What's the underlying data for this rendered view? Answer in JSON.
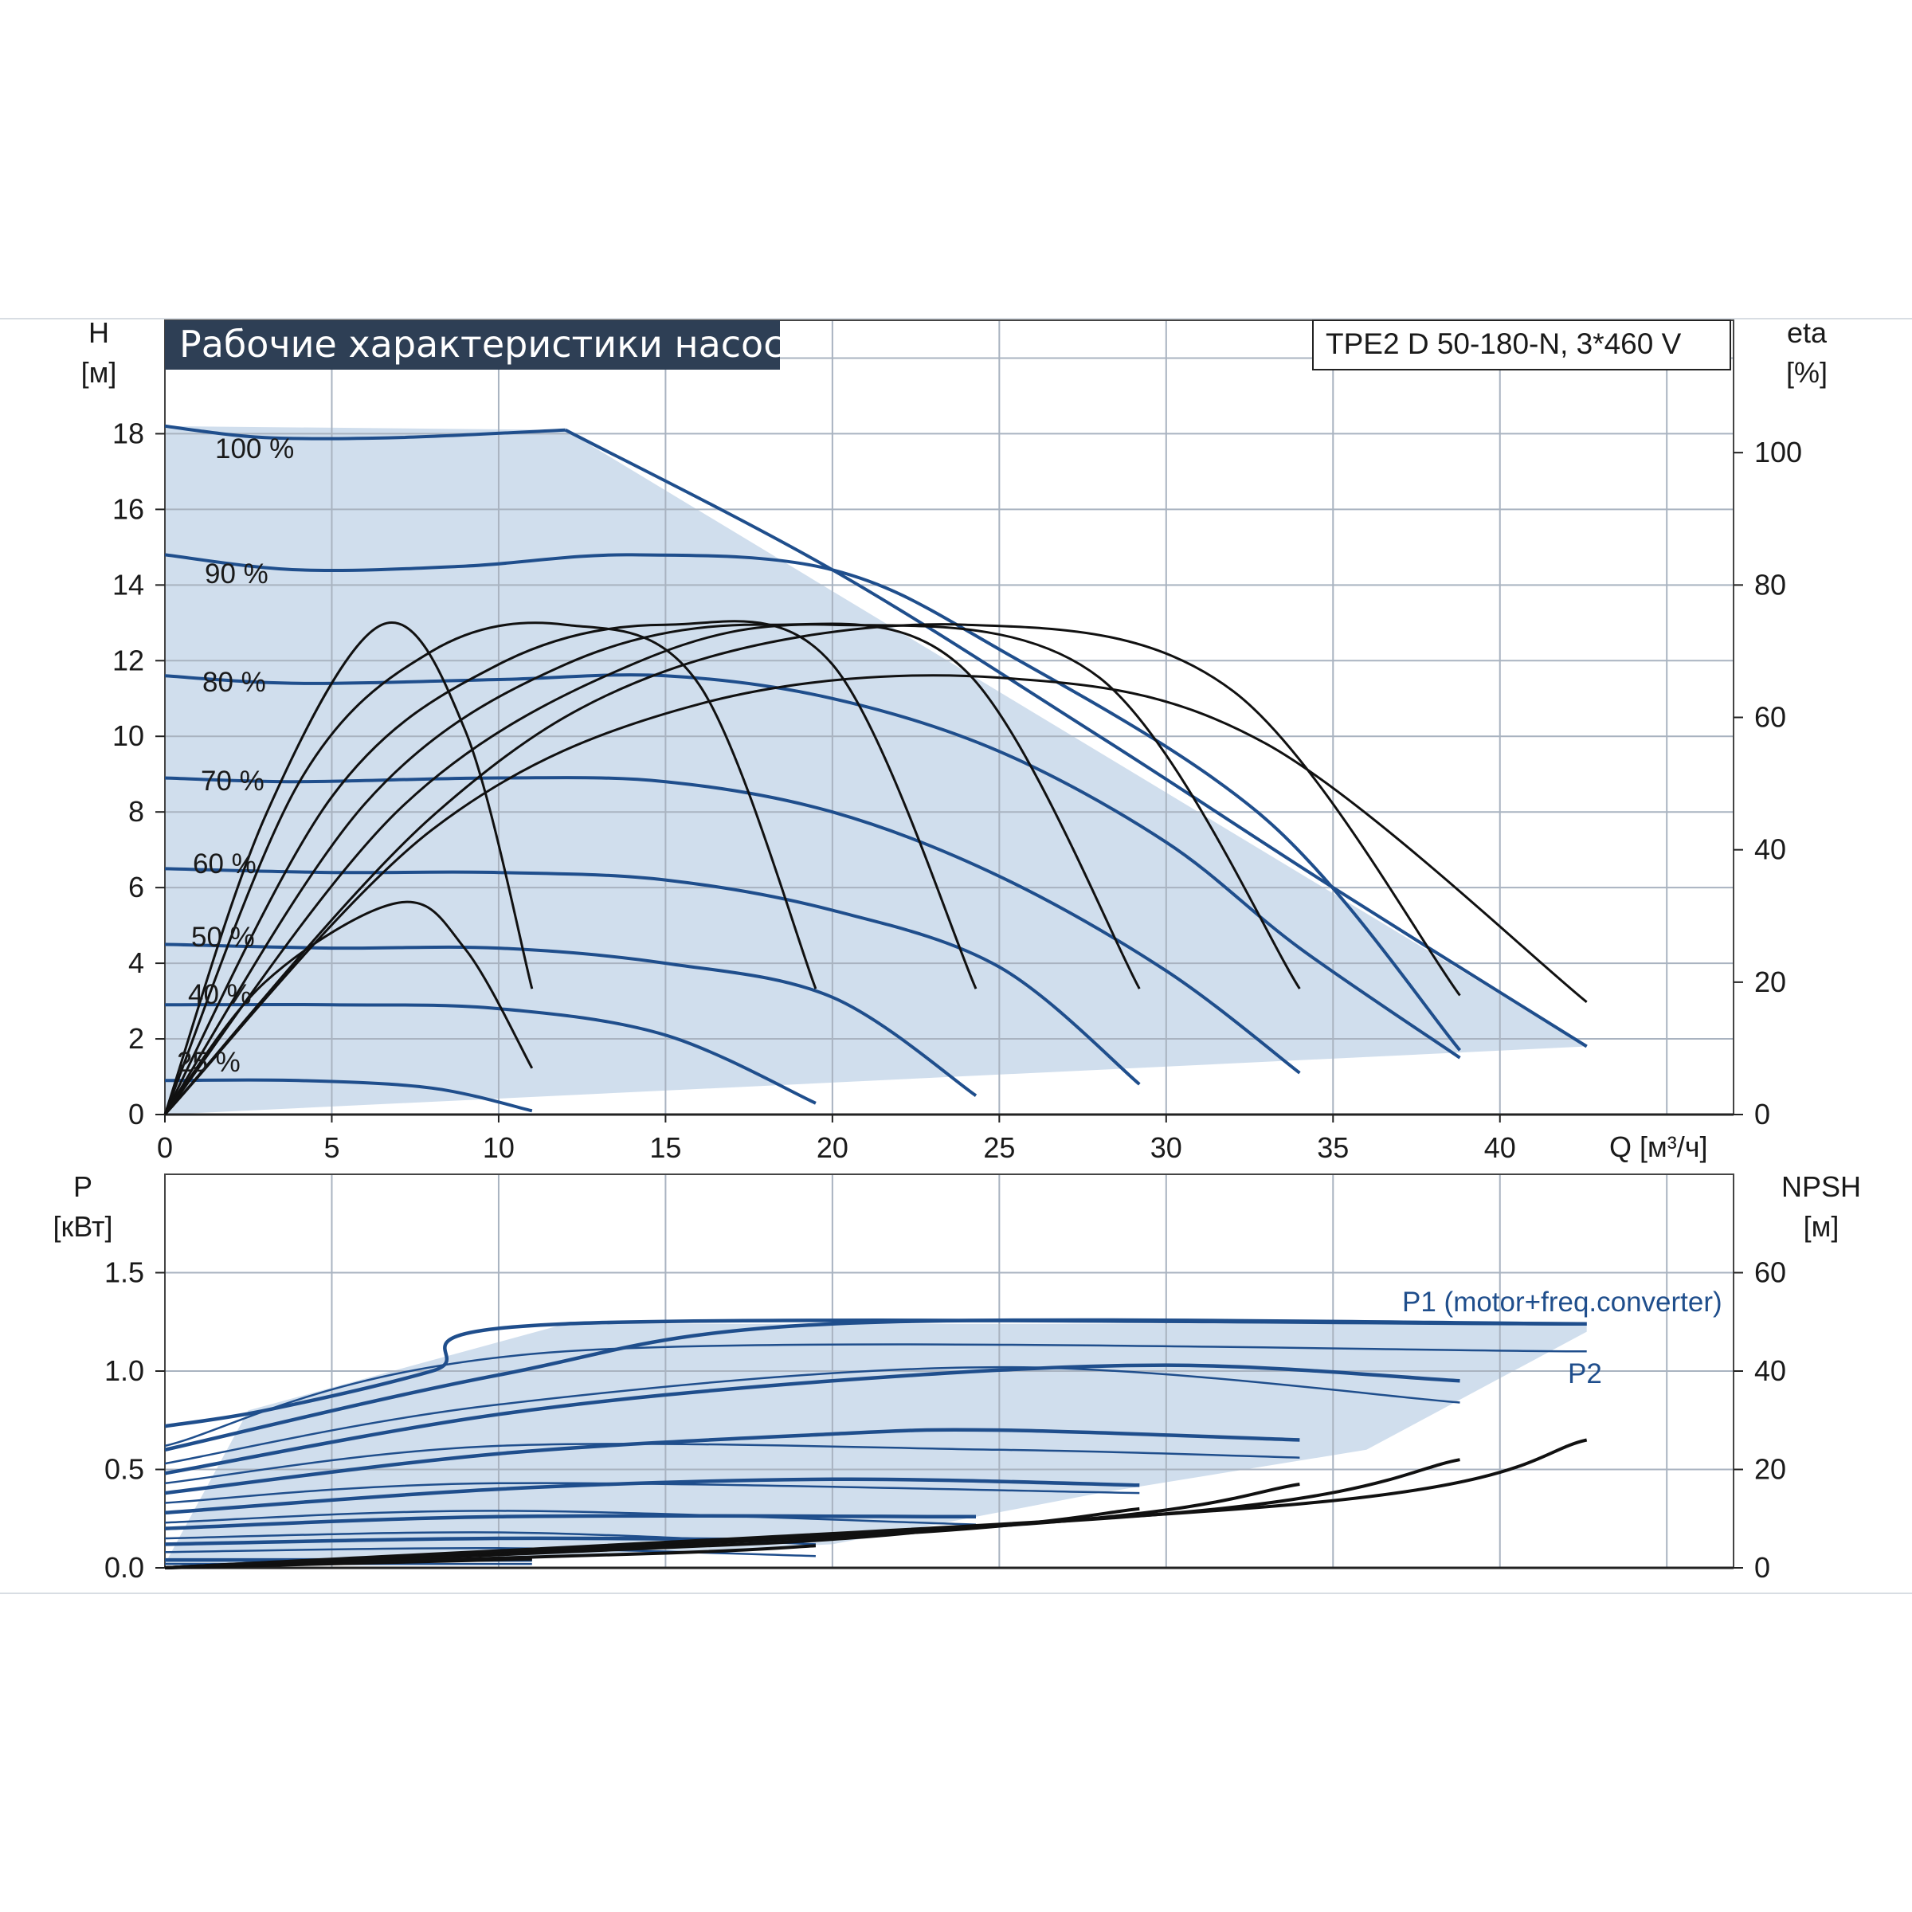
{
  "colors": {
    "curve_blue": "#1f4e8c",
    "area_fill": "#cddcec",
    "area_fill_light": "#eef5fc",
    "grid": "#a9b3c0",
    "efficiency": "#111111",
    "title_bg": "#2e3f55"
  },
  "header": {
    "title": "Рабочие характеристики насоса",
    "model": "TPE2 D 50-180-N, 3*460 V"
  },
  "chart_data": [
    {
      "type": "line",
      "title": "Рабочие характеристики насоса",
      "xlabel": "Q [м³/ч]",
      "ylabel_unit": "H",
      "ylabel_dim": "[м]",
      "y2label_unit": "eta",
      "y2label_dim": "[%]",
      "xlim": [
        0,
        47
      ],
      "ylim": [
        0,
        21
      ],
      "y2lim": [
        0,
        120
      ],
      "x_ticks": [
        "0",
        "5",
        "10",
        "15",
        "20",
        "25",
        "30",
        "35",
        "40"
      ],
      "y_ticks": [
        "0",
        "2",
        "4",
        "6",
        "8",
        "10",
        "12",
        "14",
        "16",
        "18"
      ],
      "y2_ticks": [
        "0",
        "20",
        "40",
        "60",
        "80",
        "100"
      ],
      "grid": true,
      "operating_area": [
        [
          0,
          0
        ],
        [
          42.6,
          1.8
        ],
        [
          12,
          18.1
        ],
        [
          0,
          18.2
        ]
      ],
      "speed_curves": [
        {
          "name": "100 %",
          "points": [
            [
              0,
              18.2
            ],
            [
              3,
              17.9
            ],
            [
              7,
              17.9
            ],
            [
              12,
              18.1
            ]
          ]
        },
        {
          "name": "90 %",
          "points": [
            [
              0,
              14.8
            ],
            [
              4,
              14.4
            ],
            [
              9,
              14.5
            ],
            [
              14,
              14.8
            ],
            [
              20,
              14.4
            ],
            [
              25,
              12.3
            ],
            [
              33,
              7.8
            ],
            [
              38.8,
              1.7
            ]
          ]
        },
        {
          "name": "80 %",
          "points": [
            [
              0,
              11.6
            ],
            [
              4,
              11.4
            ],
            [
              10,
              11.5
            ],
            [
              15,
              11.6
            ],
            [
              20,
              11.0
            ],
            [
              25,
              9.6
            ],
            [
              30,
              7.2
            ],
            [
              34,
              4.4
            ],
            [
              38.8,
              1.5
            ]
          ]
        },
        {
          "name": "70 %",
          "points": [
            [
              0,
              8.9
            ],
            [
              4,
              8.8
            ],
            [
              10,
              8.9
            ],
            [
              15,
              8.8
            ],
            [
              20,
              8.0
            ],
            [
              25,
              6.3
            ],
            [
              30,
              3.8
            ],
            [
              34,
              1.1
            ]
          ]
        },
        {
          "name": "60 %",
          "points": [
            [
              0,
              6.5
            ],
            [
              5,
              6.4
            ],
            [
              10,
              6.4
            ],
            [
              15,
              6.2
            ],
            [
              20,
              5.4
            ],
            [
              25,
              3.9
            ],
            [
              29.2,
              0.8
            ]
          ]
        },
        {
          "name": "50 %",
          "points": [
            [
              0,
              4.5
            ],
            [
              5,
              4.4
            ],
            [
              10,
              4.4
            ],
            [
              15,
              4.0
            ],
            [
              20,
              3.1
            ],
            [
              24.3,
              0.5
            ]
          ]
        },
        {
          "name": "40 %",
          "points": [
            [
              0,
              2.9
            ],
            [
              5,
              2.9
            ],
            [
              10,
              2.8
            ],
            [
              15,
              2.1
            ],
            [
              19.5,
              0.3
            ]
          ]
        },
        {
          "name": "25 %",
          "points": [
            [
              0,
              0.9
            ],
            [
              4,
              0.9
            ],
            [
              8,
              0.7
            ],
            [
              11,
              0.1
            ]
          ]
        }
      ],
      "max_curve": [
        [
          12,
          18.1
        ],
        [
          20,
          14.4
        ],
        [
          28,
          10.0
        ],
        [
          35,
          6.0
        ],
        [
          42.6,
          1.8
        ]
      ],
      "efficiency_curves": [
        {
          "points": [
            [
              0,
              0
            ],
            [
              3,
              45
            ],
            [
              6.5,
              74
            ],
            [
              9,
              58
            ],
            [
              11,
              19
            ]
          ]
        },
        {
          "points": [
            [
              0,
              0
            ],
            [
              4,
              50
            ],
            [
              8,
              70
            ],
            [
              12,
              74
            ],
            [
              16,
              65
            ],
            [
              19.5,
              19
            ]
          ]
        },
        {
          "points": [
            [
              0,
              0
            ],
            [
              5,
              48
            ],
            [
              10,
              68
            ],
            [
              15,
              74
            ],
            [
              20,
              68
            ],
            [
              24.3,
              19
            ]
          ]
        },
        {
          "points": [
            [
              0,
              0
            ],
            [
              6,
              47
            ],
            [
              12,
              68
            ],
            [
              18,
              74
            ],
            [
              24,
              67
            ],
            [
              29.2,
              19
            ]
          ]
        },
        {
          "points": [
            [
              0,
              0
            ],
            [
              7,
              46
            ],
            [
              14,
              68
            ],
            [
              20,
              74
            ],
            [
              28,
              66
            ],
            [
              34,
              19
            ]
          ]
        },
        {
          "points": [
            [
              0,
              0
            ],
            [
              8,
              45
            ],
            [
              15,
              67
            ],
            [
              24,
              74
            ],
            [
              32,
              64
            ],
            [
              38.8,
              18
            ]
          ]
        },
        {
          "points": [
            [
              0,
              0
            ],
            [
              8,
              43
            ],
            [
              16,
              62
            ],
            [
              25,
              66
            ],
            [
              33,
              56
            ],
            [
              42.6,
              17
            ]
          ]
        },
        {
          "points": [
            [
              0,
              0
            ],
            [
              3,
              20
            ],
            [
              7,
              32
            ],
            [
              9,
              25
            ],
            [
              11,
              7
            ]
          ]
        }
      ],
      "speed_labels": [
        "100 %",
        "90 %",
        "80 %",
        "70 %",
        "60 %",
        "50 %",
        "40 %",
        "25 %"
      ]
    },
    {
      "type": "line",
      "ylabel_unit": "P",
      "ylabel_dim": "[кВт]",
      "y2label_unit": "NPSH",
      "y2label_dim": "[м]",
      "xlim": [
        0,
        47
      ],
      "ylim": [
        0,
        2.0
      ],
      "y2lim": [
        0,
        80
      ],
      "y_ticks": [
        "0.0",
        "0.5",
        "1.0",
        "1.5"
      ],
      "y2_ticks": [
        "0",
        "20",
        "40",
        "60"
      ],
      "grid": true,
      "power_area": [
        [
          0,
          0.02
        ],
        [
          2.5,
          0.8
        ],
        [
          12,
          1.24
        ],
        [
          42.6,
          1.24
        ],
        [
          42.6,
          1.2
        ],
        [
          36,
          0.6
        ],
        [
          28,
          0.38
        ],
        [
          20,
          0.12
        ],
        [
          10,
          0.04
        ]
      ],
      "p1_label": "P1 (motor+freq.converter)",
      "p2_label": "P2",
      "p1_curves": [
        {
          "points": [
            [
              0,
              0.72
            ],
            [
              3,
              0.8
            ],
            [
              8,
              1.0
            ],
            [
              12,
              1.24
            ],
            [
              42.6,
              1.24
            ]
          ]
        },
        {
          "points": [
            [
              0,
              0.6
            ],
            [
              10,
              0.98
            ],
            [
              20,
              1.24
            ],
            [
              42.6,
              1.24
            ]
          ]
        },
        {
          "points": [
            [
              0,
              0.48
            ],
            [
              10,
              0.78
            ],
            [
              20,
              0.95
            ],
            [
              30,
              1.03
            ],
            [
              38.8,
              0.95
            ]
          ]
        },
        {
          "points": [
            [
              0,
              0.38
            ],
            [
              10,
              0.58
            ],
            [
              20,
              0.68
            ],
            [
              25,
              0.7
            ],
            [
              34,
              0.65
            ]
          ]
        },
        {
          "points": [
            [
              0,
              0.28
            ],
            [
              10,
              0.4
            ],
            [
              20,
              0.45
            ],
            [
              29.2,
              0.42
            ]
          ]
        },
        {
          "points": [
            [
              0,
              0.2
            ],
            [
              10,
              0.26
            ],
            [
              24.3,
              0.26
            ]
          ]
        },
        {
          "points": [
            [
              0,
              0.12
            ],
            [
              10,
              0.15
            ],
            [
              19.5,
              0.14
            ]
          ]
        },
        {
          "points": [
            [
              0,
              0.04
            ],
            [
              11,
              0.04
            ]
          ]
        }
      ],
      "p2_curves": [
        {
          "points": [
            [
              0,
              0.62
            ],
            [
              12,
              1.1
            ],
            [
              42.6,
              1.1
            ]
          ]
        },
        {
          "points": [
            [
              0,
              0.53
            ],
            [
              10,
              0.83
            ],
            [
              25,
              1.02
            ],
            [
              38.8,
              0.84
            ]
          ]
        },
        {
          "points": [
            [
              0,
              0.43
            ],
            [
              10,
              0.62
            ],
            [
              25,
              0.6
            ],
            [
              34,
              0.56
            ]
          ]
        },
        {
          "points": [
            [
              0,
              0.33
            ],
            [
              10,
              0.43
            ],
            [
              29.2,
              0.38
            ]
          ]
        },
        {
          "points": [
            [
              0,
              0.23
            ],
            [
              10,
              0.29
            ],
            [
              24.3,
              0.22
            ]
          ]
        },
        {
          "points": [
            [
              0,
              0.15
            ],
            [
              10,
              0.18
            ],
            [
              19.5,
              0.12
            ]
          ]
        },
        {
          "points": [
            [
              0,
              0.08
            ],
            [
              10,
              0.1
            ],
            [
              19.5,
              0.06
            ]
          ]
        },
        {
          "points": [
            [
              0,
              0.02
            ],
            [
              11,
              0.02
            ]
          ]
        }
      ],
      "npsh_curves": [
        {
          "points": [
            [
              0,
              0
            ],
            [
              11,
              1.8
            ]
          ]
        },
        {
          "points": [
            [
              0,
              0
            ],
            [
              15,
              3
            ],
            [
              19.5,
              4.5
            ]
          ]
        },
        {
          "points": [
            [
              0,
              0
            ],
            [
              18,
              5
            ],
            [
              24.3,
              8.5
            ]
          ]
        },
        {
          "points": [
            [
              0,
              0
            ],
            [
              22,
              7
            ],
            [
              29.2,
              12
            ]
          ]
        },
        {
          "points": [
            [
              0,
              0
            ],
            [
              26,
              9
            ],
            [
              34,
              17
            ]
          ]
        },
        {
          "points": [
            [
              0,
              0
            ],
            [
              30,
              11
            ],
            [
              38.8,
              22
            ]
          ]
        },
        {
          "points": [
            [
              0,
              0
            ],
            [
              34,
              13
            ],
            [
              42.6,
              26
            ]
          ]
        }
      ]
    }
  ]
}
